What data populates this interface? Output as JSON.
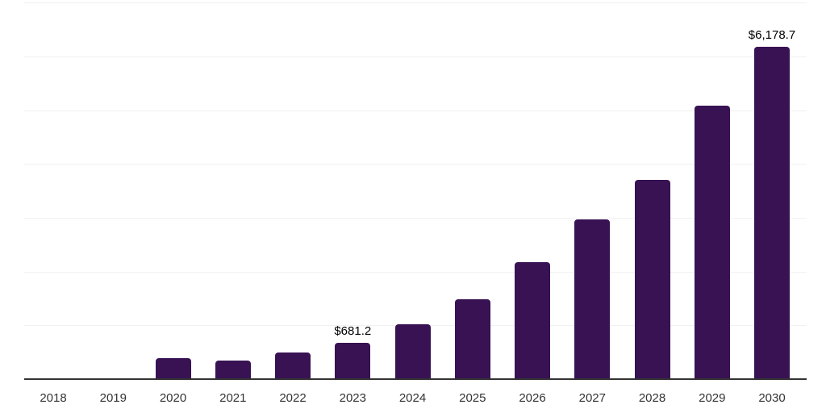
{
  "chart_data": {
    "type": "bar",
    "title": "",
    "xlabel": "",
    "ylabel": "",
    "categories": [
      "2018",
      "2019",
      "2020",
      "2021",
      "2022",
      "2023",
      "2024",
      "2025",
      "2026",
      "2027",
      "2028",
      "2029",
      "2030"
    ],
    "values": [
      8,
      12,
      395,
      350,
      495,
      681.2,
      1020,
      1490,
      2170,
      2970,
      3710,
      5090,
      6178.7
    ],
    "data_labels": [
      "",
      "",
      "",
      "",
      "",
      "$681.2",
      "",
      "",
      "",
      "",
      "",
      "",
      "$6,178.7"
    ],
    "ylim": [
      0,
      7000
    ],
    "gridline_step": 1000,
    "grid": "horizontal-only",
    "legend": "none",
    "colors": {
      "bar": "#381253",
      "axis_line": "#333333",
      "gridline": "#f1f1f1",
      "tick_label": "#333333",
      "data_label": "#000000",
      "background": "#ffffff"
    }
  }
}
